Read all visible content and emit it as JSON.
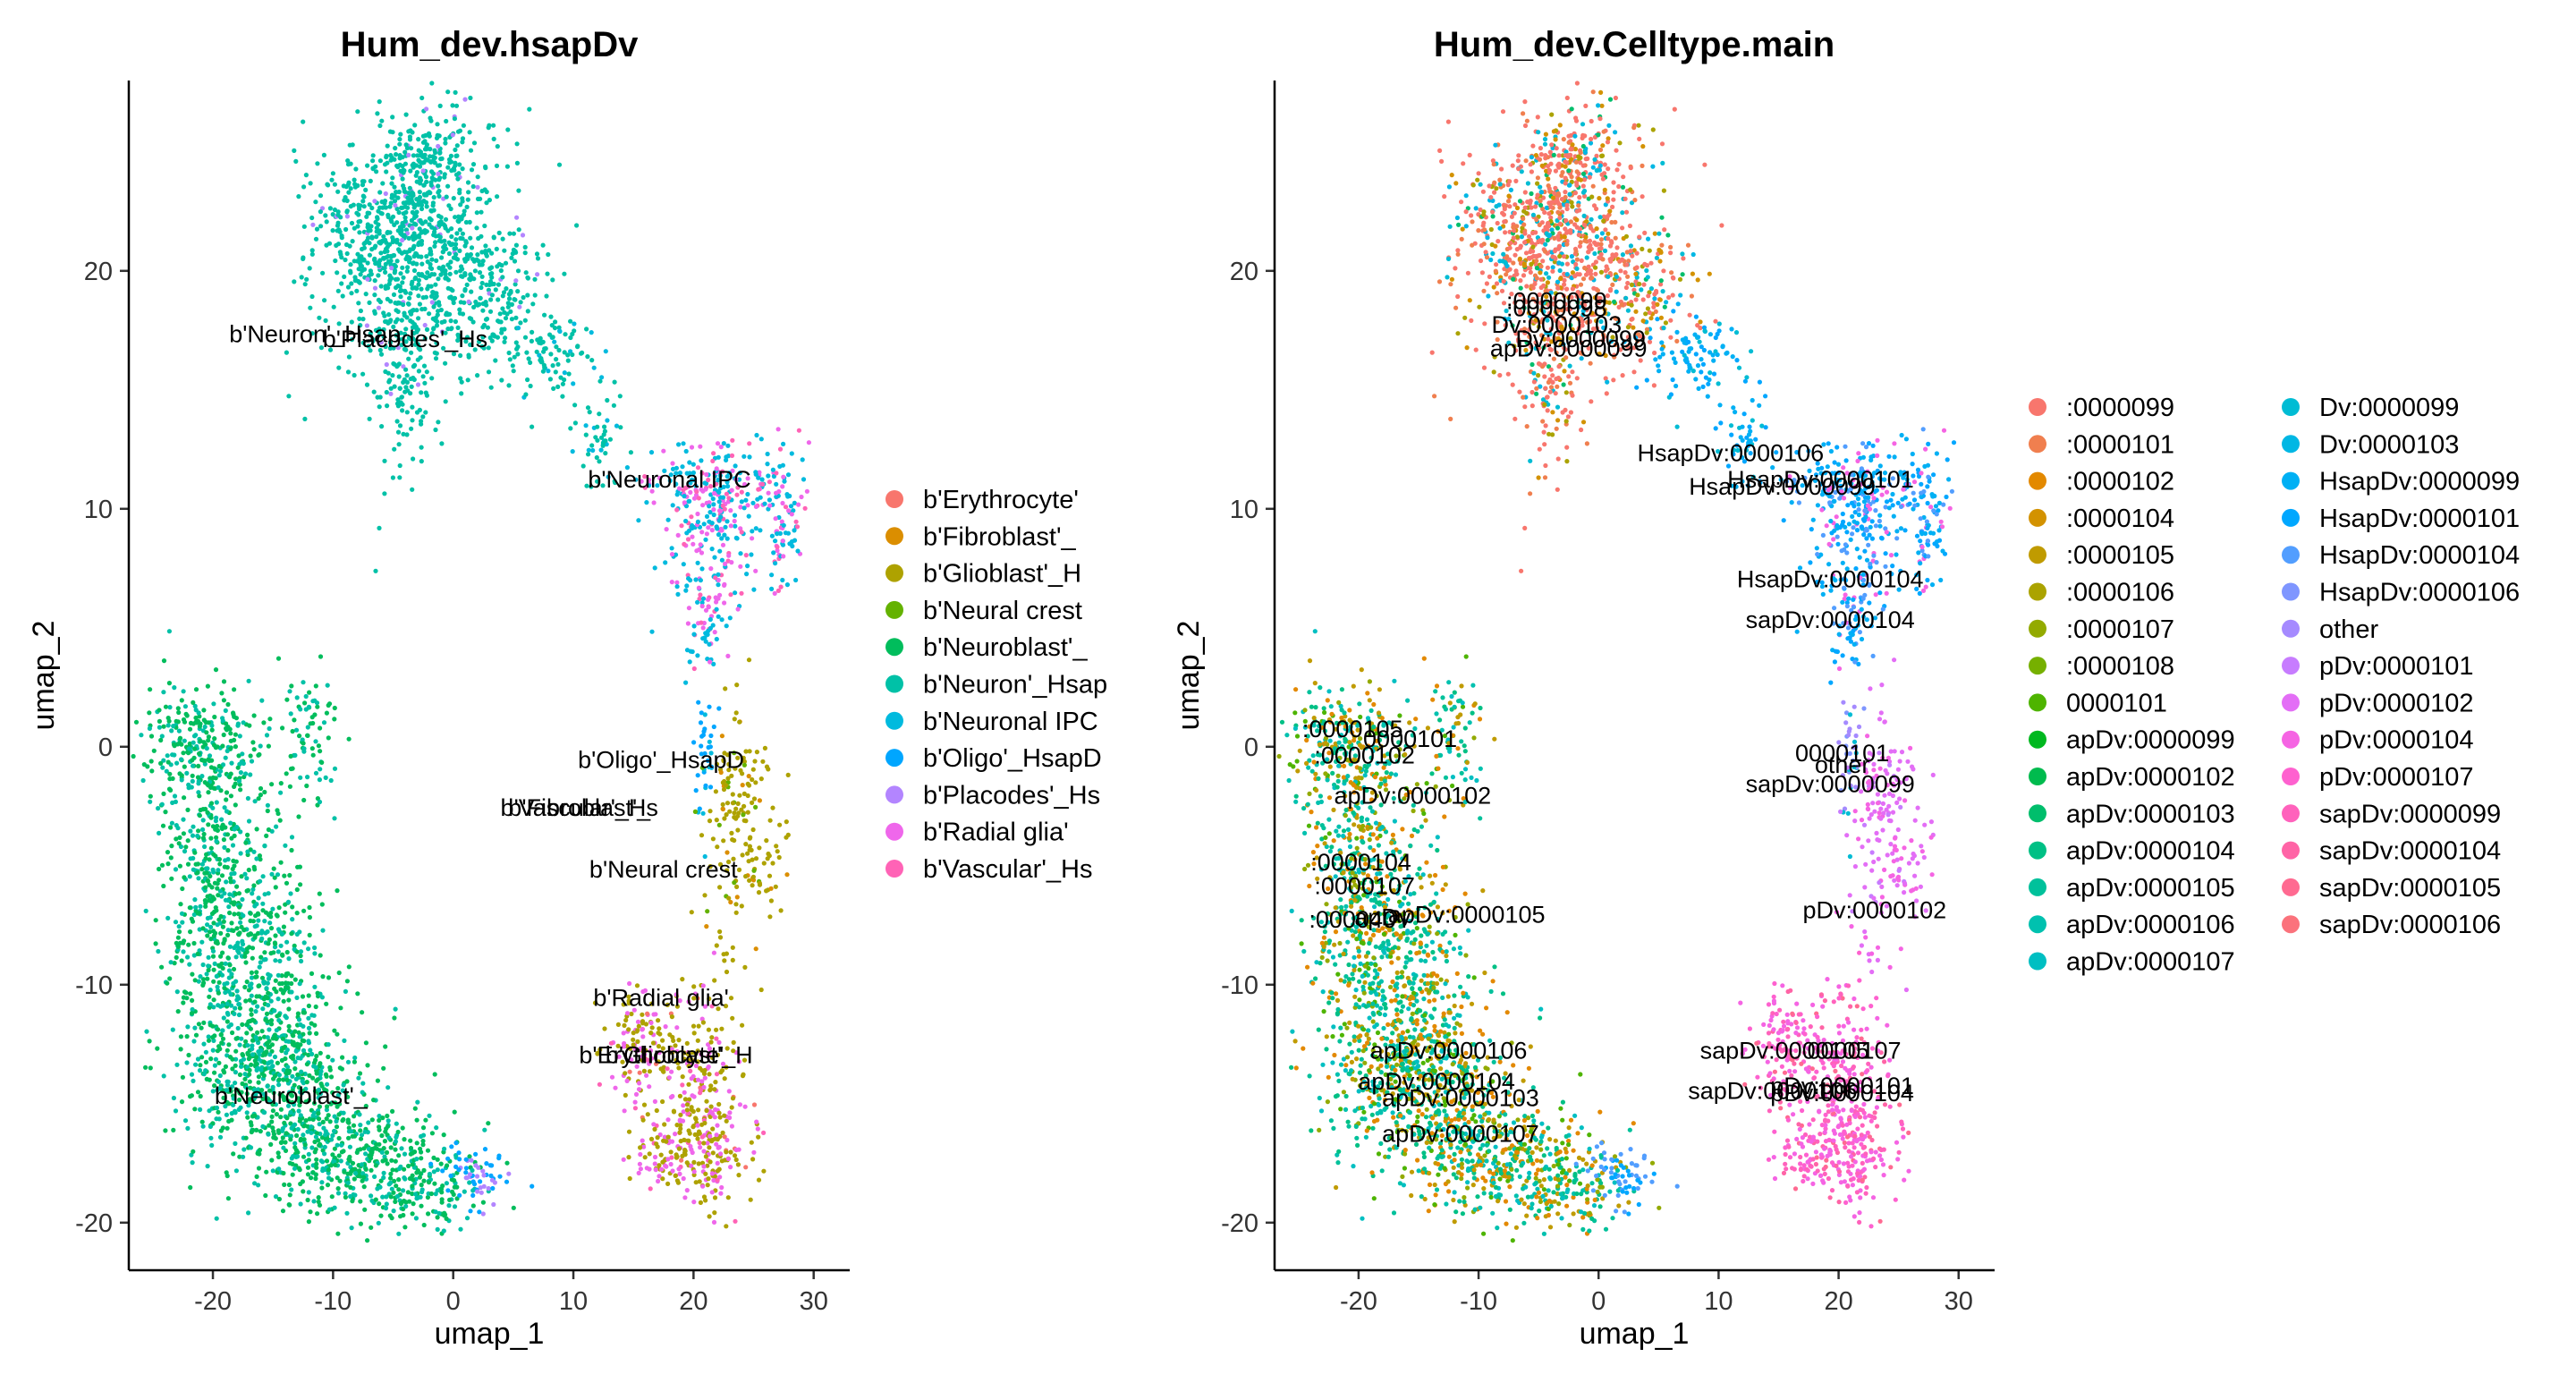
{
  "chart_data": [
    {
      "type": "scatter",
      "title": "Hum_dev.hsapDv",
      "xlabel": "umap_1",
      "ylabel": "umap_2",
      "xlim": [
        -27,
        33
      ],
      "ylim": [
        -22,
        28
      ],
      "xticks": [
        "-20",
        "-10",
        "0",
        "10",
        "20",
        "30"
      ],
      "yticks": [
        "-20",
        "-10",
        "0",
        "10",
        "20"
      ],
      "legend_position": "right",
      "series": [
        {
          "name": "b'Erythrocyte'",
          "color": "#F8766D"
        },
        {
          "name": "b'Fibroblast'_",
          "color": "#DB8E00"
        },
        {
          "name": "b'Glioblast'_H",
          "color": "#AEA200"
        },
        {
          "name": "b'Neural crest",
          "color": "#64B200"
        },
        {
          "name": "b'Neuroblast'_",
          "color": "#00BD5C"
        },
        {
          "name": "b'Neuron'_Hsap",
          "color": "#00C1A7"
        },
        {
          "name": "b'Neuronal IPC",
          "color": "#00BADE"
        },
        {
          "name": "b'Oligo'_HsapD",
          "color": "#00A6FF"
        },
        {
          "name": "b'Placodes'_Hs",
          "color": "#B385FF"
        },
        {
          "name": "b'Radial glia'",
          "color": "#EF67EB"
        },
        {
          "name": "b'Vascular'_Hs",
          "color": "#FF63B6"
        }
      ],
      "annotations": [
        {
          "text": "b'Neuron'_Hsap",
          "x": -11.5,
          "y": 17
        },
        {
          "text": "b'Placodes'_Hs",
          "x": -4,
          "y": 16.8
        },
        {
          "text": "b'Neuronal IPC",
          "x": 18,
          "y": 10.9
        },
        {
          "text": "b'Oligo'_HsapD",
          "x": 17.3,
          "y": -0.9
        },
        {
          "text": "b'Fibroblast'_",
          "x": 10.5,
          "y": -2.9
        },
        {
          "text": "b'Vascular'_Hs",
          "x": 10.5,
          "y": -2.9
        },
        {
          "text": "b'Neural crest",
          "x": 17.5,
          "y": -5.5
        },
        {
          "text": "b'Radial glia'",
          "x": 17.3,
          "y": -10.9
        },
        {
          "text": "b'Erythrocyte'",
          "x": 16.5,
          "y": -13.3
        },
        {
          "text": "b'Glioblast'_H",
          "x": 18.8,
          "y": -13.3
        },
        {
          "text": "b'Neuroblast'_",
          "x": -13.5,
          "y": -15
        }
      ]
    },
    {
      "type": "scatter",
      "title": "Hum_dev.Celltype.main",
      "xlabel": "umap_1",
      "ylabel": "umap_2",
      "xlim": [
        -27,
        33
      ],
      "ylim": [
        -22,
        28
      ],
      "xticks": [
        "-20",
        "-10",
        "0",
        "10",
        "20",
        "30"
      ],
      "yticks": [
        "-20",
        "-10",
        "0",
        "10",
        "20"
      ],
      "legend_position": "right",
      "series": [
        {
          "name": ":0000099",
          "color": "#F8766D"
        },
        {
          "name": ":0000101",
          "color": "#F07F4F"
        },
        {
          "name": ":0000102",
          "color": "#E38900"
        },
        {
          "name": ":0000104",
          "color": "#D39200"
        },
        {
          "name": ":0000105",
          "color": "#C09B00"
        },
        {
          "name": ":0000106",
          "color": "#ABA300"
        },
        {
          "name": ":0000107",
          "color": "#93AA00"
        },
        {
          "name": ":0000108",
          "color": "#76B000"
        },
        {
          "name": "0000101",
          "color": "#4EB400"
        },
        {
          "name": "apDv:0000099",
          "color": "#00B81F"
        },
        {
          "name": "apDv:0000102",
          "color": "#00BB4E"
        },
        {
          "name": "apDv:0000103",
          "color": "#00BE6C"
        },
        {
          "name": "apDv:0000104",
          "color": "#00C085"
        },
        {
          "name": "apDv:0000105",
          "color": "#00C19B"
        },
        {
          "name": "apDv:0000106",
          "color": "#00C1AF"
        },
        {
          "name": "apDv:0000107",
          "color": "#00BFC2"
        },
        {
          "name": "Dv:0000099",
          "color": "#00BCD4"
        },
        {
          "name": "Dv:0000103",
          "color": "#00B7E4"
        },
        {
          "name": "HsapDv:0000099",
          "color": "#00B0F4"
        },
        {
          "name": "HsapDv:0000101",
          "color": "#00A7FF"
        },
        {
          "name": "HsapDv:0000104",
          "color": "#529EFF"
        },
        {
          "name": "HsapDv:0000106",
          "color": "#7F96FF"
        },
        {
          "name": "other",
          "color": "#A58AFF"
        },
        {
          "name": "pDv:0000101",
          "color": "#C77CFF"
        },
        {
          "name": "pDv:0000102",
          "color": "#E36EF6"
        },
        {
          "name": "pDv:0000104",
          "color": "#F564E3"
        },
        {
          "name": "pDv:0000107",
          "color": "#FE61CF"
        },
        {
          "name": "sapDv:0000099",
          "color": "#FF62BC"
        },
        {
          "name": "sapDv:0000104",
          "color": "#FF64A6"
        },
        {
          "name": "sapDv:0000105",
          "color": "#FF6A91"
        },
        {
          "name": "sapDv:0000106",
          "color": "#FB727C"
        }
      ],
      "annotations": [
        {
          "text": ":0000099",
          "x": -3.5,
          "y": 18.4
        },
        {
          "text": ":0000098",
          "x": -3.5,
          "y": 18.1
        },
        {
          "text": "Dv:0000103",
          "x": -3.5,
          "y": 17.4
        },
        {
          "text": "Dv:0000099",
          "x": -1.5,
          "y": 16.8
        },
        {
          "text": "apDv:0000099",
          "x": -2.5,
          "y": 16.4
        },
        {
          "text": "HsapDv:0000106",
          "x": 11,
          "y": 12
        },
        {
          "text": "HsapDv:0000101",
          "x": 18.5,
          "y": 10.9
        },
        {
          "text": "HsapDv:0000099",
          "x": 15.3,
          "y": 10.6
        },
        {
          "text": "HsapDv:0000104",
          "x": 19.3,
          "y": 6.7
        },
        {
          "text": "sapDv:0000104",
          "x": 19.3,
          "y": 5
        },
        {
          "text": ":0000105",
          "x": -20.5,
          "y": 0.4
        },
        {
          "text": "0000101",
          "x": -15.7,
          "y": 0
        },
        {
          "text": ":0000102",
          "x": -19.5,
          "y": -0.7
        },
        {
          "text": "0000101",
          "x": 20.3,
          "y": -0.6
        },
        {
          "text": "other",
          "x": 20.3,
          "y": -1.1
        },
        {
          "text": "sapDv:0000099",
          "x": 19.3,
          "y": -1.9
        },
        {
          "text": "apDv:0000102",
          "x": -15.5,
          "y": -2.4
        },
        {
          "text": ":0000104",
          "x": -19.8,
          "y": -5.2
        },
        {
          "text": ":0000107",
          "x": -19.5,
          "y": -6.2
        },
        {
          "text": "apDv:0000105",
          "x": -11,
          "y": -7.4
        },
        {
          "text": ":000040",
          "x": -20.5,
          "y": -7.6
        },
        {
          "text": "apDv",
          "x": -18,
          "y": -7.5
        },
        {
          "text": "pDv:0000102",
          "x": 23,
          "y": -7.2
        },
        {
          "text": "apDv:0000106",
          "x": -12.5,
          "y": -13.1
        },
        {
          "text": "sapDv:0000105",
          "x": 15.5,
          "y": -13.1
        },
        {
          "text": "0000107",
          "x": 21.3,
          "y": -13.1
        },
        {
          "text": "apDv:0000104",
          "x": -13.5,
          "y": -14.4
        },
        {
          "text": "apDv:0000103",
          "x": -11.5,
          "y": -15.1
        },
        {
          "text": "sapDv:0000106",
          "x": 14.5,
          "y": -14.8
        },
        {
          "text": "pDv:0000101",
          "x": 20.3,
          "y": -14.6
        },
        {
          "text": "pDv:0000104",
          "x": 20.3,
          "y": -14.9
        },
        {
          "text": "apDv:0000107",
          "x": -11.5,
          "y": -16.6
        }
      ]
    }
  ]
}
